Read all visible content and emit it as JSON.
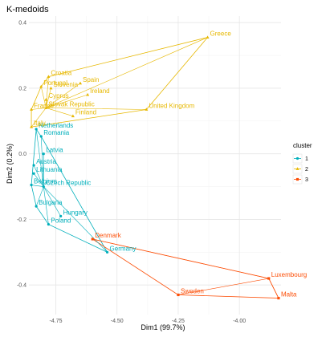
{
  "chart_data": {
    "type": "scatter",
    "title": "K-medoids",
    "xlabel": "Dim1 (99.7%)",
    "ylabel": "Dim2 (0.2%)",
    "xlim": [
      -4.86,
      -3.83
    ],
    "ylim": [
      -0.49,
      0.42
    ],
    "x_ticks": [
      {
        "value": -4.75,
        "label": "-4.75"
      },
      {
        "value": -4.5,
        "label": "-4.50"
      },
      {
        "value": -4.25,
        "label": "-4.25"
      },
      {
        "value": -4.0,
        "label": "-4.00"
      }
    ],
    "y_ticks": [
      {
        "value": 0.4,
        "label": "0.4"
      },
      {
        "value": 0.2,
        "label": "0.2"
      },
      {
        "value": 0.0,
        "label": "0.0"
      },
      {
        "value": -0.2,
        "label": "-0.2"
      },
      {
        "value": -0.4,
        "label": "-0.4"
      }
    ],
    "grid": true,
    "legend": {
      "title": "cluster",
      "position": "right"
    },
    "clusters": [
      {
        "name": "1",
        "color": "#00afbb",
        "marker": "circle",
        "medoid": "Czech Republic",
        "points": [
          {
            "label": "Netherlands",
            "x": -4.83,
            "y": 0.075
          },
          {
            "label": "Romania",
            "x": -4.81,
            "y": 0.053
          },
          {
            "label": "Latvia",
            "x": -4.8,
            "y": 0.0
          },
          {
            "label": "Austria",
            "x": -4.84,
            "y": -0.035
          },
          {
            "label": "Lithuania",
            "x": -4.84,
            "y": -0.06
          },
          {
            "label": "Czech Republic",
            "x": -4.8,
            "y": -0.1
          },
          {
            "label": "Belgium",
            "x": -4.85,
            "y": -0.095
          },
          {
            "label": "Bulgaria",
            "x": -4.83,
            "y": -0.16
          },
          {
            "label": "Hungary",
            "x": -4.73,
            "y": -0.19
          },
          {
            "label": "Poland",
            "x": -4.78,
            "y": -0.215
          },
          {
            "label": "Germany",
            "x": -4.54,
            "y": -0.3
          }
        ]
      },
      {
        "name": "2",
        "color": "#e7b800",
        "marker": "triangle",
        "medoid": "Slovak Republic",
        "points": [
          {
            "label": "Greece",
            "x": -4.13,
            "y": 0.355
          },
          {
            "label": "Croatia",
            "x": -4.78,
            "y": 0.235
          },
          {
            "label": "Spain",
            "x": -4.65,
            "y": 0.215
          },
          {
            "label": "Portugal",
            "x": -4.81,
            "y": 0.205
          },
          {
            "label": "Slovenia",
            "x": -4.77,
            "y": 0.2
          },
          {
            "label": "Ireland",
            "x": -4.62,
            "y": 0.18
          },
          {
            "label": "Cyprus",
            "x": -4.79,
            "y": 0.165
          },
          {
            "label": "France",
            "x": -4.85,
            "y": 0.135
          },
          {
            "label": "Slovak Republic",
            "x": -4.79,
            "y": 0.14
          },
          {
            "label": "United Kingdom",
            "x": -4.38,
            "y": 0.135
          },
          {
            "label": "Finland",
            "x": -4.68,
            "y": 0.115
          },
          {
            "label": "Italy",
            "x": -4.85,
            "y": 0.082
          }
        ]
      },
      {
        "name": "3",
        "color": "#fc4e07",
        "marker": "square",
        "medoid": "Luxembourg",
        "points": [
          {
            "label": "Denmark",
            "x": -4.6,
            "y": -0.26
          },
          {
            "label": "Luxembourg",
            "x": -3.88,
            "y": -0.38
          },
          {
            "label": "Sweden",
            "x": -4.25,
            "y": -0.43
          },
          {
            "label": "Malta",
            "x": -3.84,
            "y": -0.44
          }
        ]
      }
    ],
    "label_offsets_note": ""
  }
}
